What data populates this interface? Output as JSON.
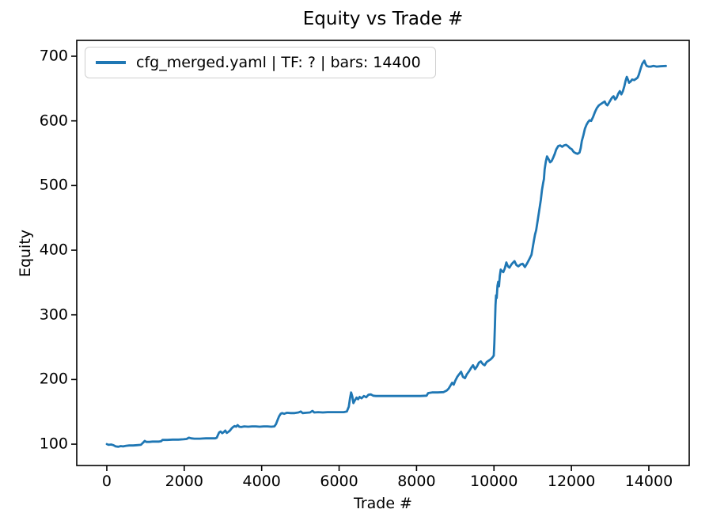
{
  "figure": {
    "title": "Equity vs Trade #",
    "xlabel": "Trade #",
    "ylabel": "Equity",
    "background": "#ffffff",
    "line_color": "#1f77b4",
    "spine_color": "#000000"
  },
  "legend": {
    "label": "cfg_merged.yaml | TF: ? | bars: 14400"
  },
  "chart_data": {
    "type": "line",
    "title": "Equity vs Trade #",
    "xlabel": "Trade #",
    "ylabel": "Equity",
    "xlim": [
      -776,
      15043
    ],
    "ylim": [
      67,
      724.5
    ],
    "x_ticks": [
      0,
      2000,
      4000,
      6000,
      8000,
      10000,
      12000,
      14000
    ],
    "x_tick_labels": [
      "0",
      "2000",
      "4000",
      "6000",
      "8000",
      "10000",
      "12000",
      "14000"
    ],
    "y_ticks": [
      100,
      200,
      300,
      400,
      500,
      600,
      700
    ],
    "y_tick_labels": [
      "100",
      "200",
      "300",
      "400",
      "500",
      "600",
      "700"
    ],
    "grid": false,
    "legend_position": "upper left",
    "series": [
      {
        "name": "cfg_merged.yaml | TF: ? | bars: 14400",
        "color": "#1f77b4",
        "points": [
          [
            0,
            100
          ],
          [
            50,
            99
          ],
          [
            110,
            99.5
          ],
          [
            170,
            98.5
          ],
          [
            230,
            96.5
          ],
          [
            300,
            96
          ],
          [
            360,
            97
          ],
          [
            420,
            96.5
          ],
          [
            500,
            97.5
          ],
          [
            580,
            98
          ],
          [
            680,
            98
          ],
          [
            780,
            98.5
          ],
          [
            880,
            99
          ],
          [
            940,
            102.5
          ],
          [
            980,
            105
          ],
          [
            1020,
            103.5
          ],
          [
            1100,
            103.5
          ],
          [
            1180,
            104
          ],
          [
            1260,
            104
          ],
          [
            1340,
            104
          ],
          [
            1400,
            104.5
          ],
          [
            1440,
            106.5
          ],
          [
            1560,
            106.5
          ],
          [
            1700,
            107
          ],
          [
            1850,
            107
          ],
          [
            1980,
            107.5
          ],
          [
            2060,
            108
          ],
          [
            2120,
            110
          ],
          [
            2180,
            109
          ],
          [
            2260,
            108.5
          ],
          [
            2400,
            108.5
          ],
          [
            2560,
            109
          ],
          [
            2700,
            109
          ],
          [
            2800,
            109
          ],
          [
            2840,
            110
          ],
          [
            2870,
            114
          ],
          [
            2900,
            118
          ],
          [
            2940,
            119.5
          ],
          [
            2980,
            117
          ],
          [
            3020,
            118.5
          ],
          [
            3060,
            121
          ],
          [
            3100,
            117.5
          ],
          [
            3140,
            119
          ],
          [
            3180,
            121
          ],
          [
            3220,
            124
          ],
          [
            3260,
            126.5
          ],
          [
            3300,
            128
          ],
          [
            3340,
            127
          ],
          [
            3380,
            129.5
          ],
          [
            3420,
            127
          ],
          [
            3470,
            126.5
          ],
          [
            3550,
            127.5
          ],
          [
            3650,
            127
          ],
          [
            3750,
            127.5
          ],
          [
            3850,
            127.5
          ],
          [
            3950,
            127
          ],
          [
            4050,
            127.5
          ],
          [
            4150,
            127.5
          ],
          [
            4250,
            127
          ],
          [
            4330,
            127.5
          ],
          [
            4370,
            131
          ],
          [
            4410,
            137
          ],
          [
            4450,
            143
          ],
          [
            4490,
            147
          ],
          [
            4530,
            148
          ],
          [
            4580,
            147
          ],
          [
            4650,
            148.5
          ],
          [
            4750,
            148
          ],
          [
            4850,
            148
          ],
          [
            4950,
            149
          ],
          [
            5010,
            150.5
          ],
          [
            5060,
            148
          ],
          [
            5150,
            148.5
          ],
          [
            5250,
            149
          ],
          [
            5310,
            151.5
          ],
          [
            5360,
            149
          ],
          [
            5460,
            149.5
          ],
          [
            5580,
            149
          ],
          [
            5700,
            149.5
          ],
          [
            5850,
            149.5
          ],
          [
            6000,
            149.5
          ],
          [
            6120,
            149.5
          ],
          [
            6200,
            150.5
          ],
          [
            6250,
            158
          ],
          [
            6280,
            170
          ],
          [
            6310,
            180
          ],
          [
            6340,
            174
          ],
          [
            6370,
            163.5
          ],
          [
            6410,
            168
          ],
          [
            6450,
            172
          ],
          [
            6490,
            169.5
          ],
          [
            6530,
            173
          ],
          [
            6580,
            171
          ],
          [
            6640,
            174.5
          ],
          [
            6700,
            172.5
          ],
          [
            6760,
            176.5
          ],
          [
            6820,
            177
          ],
          [
            6880,
            175
          ],
          [
            6950,
            174.5
          ],
          [
            7100,
            174.5
          ],
          [
            7300,
            174.5
          ],
          [
            7500,
            174.5
          ],
          [
            7700,
            174.5
          ],
          [
            7900,
            174.5
          ],
          [
            8100,
            174.5
          ],
          [
            8260,
            175
          ],
          [
            8300,
            179
          ],
          [
            8400,
            180
          ],
          [
            8550,
            180
          ],
          [
            8700,
            180.5
          ],
          [
            8780,
            183
          ],
          [
            8830,
            186
          ],
          [
            8880,
            191
          ],
          [
            8920,
            195
          ],
          [
            8960,
            192
          ],
          [
            9000,
            198
          ],
          [
            9050,
            204
          ],
          [
            9100,
            208
          ],
          [
            9150,
            212
          ],
          [
            9200,
            204
          ],
          [
            9250,
            202
          ],
          [
            9300,
            208
          ],
          [
            9360,
            213
          ],
          [
            9420,
            219
          ],
          [
            9460,
            222
          ],
          [
            9510,
            216
          ],
          [
            9560,
            220
          ],
          [
            9610,
            226
          ],
          [
            9660,
            228
          ],
          [
            9710,
            224
          ],
          [
            9760,
            222
          ],
          [
            9810,
            227
          ],
          [
            9860,
            229
          ],
          [
            9910,
            231
          ],
          [
            9960,
            234
          ],
          [
            9995,
            237
          ],
          [
            10010,
            255
          ],
          [
            10025,
            285
          ],
          [
            10040,
            315
          ],
          [
            10055,
            330
          ],
          [
            10070,
            326
          ],
          [
            10090,
            345
          ],
          [
            10110,
            351
          ],
          [
            10130,
            344
          ],
          [
            10150,
            360
          ],
          [
            10175,
            370
          ],
          [
            10200,
            368
          ],
          [
            10240,
            366
          ],
          [
            10280,
            372
          ],
          [
            10320,
            381
          ],
          [
            10360,
            375
          ],
          [
            10400,
            373
          ],
          [
            10440,
            377
          ],
          [
            10480,
            380
          ],
          [
            10530,
            383
          ],
          [
            10580,
            377
          ],
          [
            10630,
            375
          ],
          [
            10690,
            378
          ],
          [
            10740,
            379
          ],
          [
            10800,
            374
          ],
          [
            10860,
            380
          ],
          [
            10920,
            387
          ],
          [
            10970,
            393
          ],
          [
            11000,
            404
          ],
          [
            11030,
            414
          ],
          [
            11060,
            424
          ],
          [
            11090,
            431
          ],
          [
            11130,
            446
          ],
          [
            11170,
            462
          ],
          [
            11210,
            478
          ],
          [
            11240,
            493
          ],
          [
            11270,
            504
          ],
          [
            11290,
            510
          ],
          [
            11310,
            525
          ],
          [
            11340,
            537
          ],
          [
            11370,
            545
          ],
          [
            11410,
            541
          ],
          [
            11450,
            536
          ],
          [
            11490,
            538
          ],
          [
            11530,
            543
          ],
          [
            11570,
            549
          ],
          [
            11610,
            556
          ],
          [
            11660,
            561
          ],
          [
            11710,
            562
          ],
          [
            11760,
            560
          ],
          [
            11810,
            562
          ],
          [
            11860,
            563
          ],
          [
            11910,
            561
          ],
          [
            11960,
            558
          ],
          [
            12010,
            556
          ],
          [
            12060,
            552
          ],
          [
            12110,
            550
          ],
          [
            12160,
            549
          ],
          [
            12210,
            551
          ],
          [
            12240,
            558
          ],
          [
            12270,
            569
          ],
          [
            12310,
            578
          ],
          [
            12350,
            588
          ],
          [
            12390,
            594
          ],
          [
            12430,
            598
          ],
          [
            12470,
            601
          ],
          [
            12510,
            600
          ],
          [
            12560,
            606
          ],
          [
            12610,
            614
          ],
          [
            12660,
            620
          ],
          [
            12710,
            624
          ],
          [
            12760,
            626
          ],
          [
            12810,
            628
          ],
          [
            12860,
            630
          ],
          [
            12890,
            626
          ],
          [
            12930,
            624
          ],
          [
            12970,
            628
          ],
          [
            13010,
            632
          ],
          [
            13050,
            636
          ],
          [
            13090,
            638
          ],
          [
            13130,
            633
          ],
          [
            13170,
            636
          ],
          [
            13210,
            642
          ],
          [
            13250,
            646
          ],
          [
            13290,
            641
          ],
          [
            13330,
            646
          ],
          [
            13370,
            654
          ],
          [
            13400,
            662
          ],
          [
            13430,
            668
          ],
          [
            13460,
            664
          ],
          [
            13490,
            659
          ],
          [
            13530,
            661
          ],
          [
            13570,
            664
          ],
          [
            13620,
            663
          ],
          [
            13670,
            665
          ],
          [
            13710,
            667
          ],
          [
            13740,
            671
          ],
          [
            13770,
            677
          ],
          [
            13800,
            683
          ],
          [
            13830,
            688
          ],
          [
            13860,
            691
          ],
          [
            13885,
            693
          ],
          [
            13915,
            688
          ],
          [
            13945,
            685
          ],
          [
            13990,
            684
          ],
          [
            14050,
            684
          ],
          [
            14120,
            685
          ],
          [
            14200,
            684
          ],
          [
            14300,
            684.5
          ],
          [
            14440,
            685
          ]
        ]
      }
    ]
  }
}
